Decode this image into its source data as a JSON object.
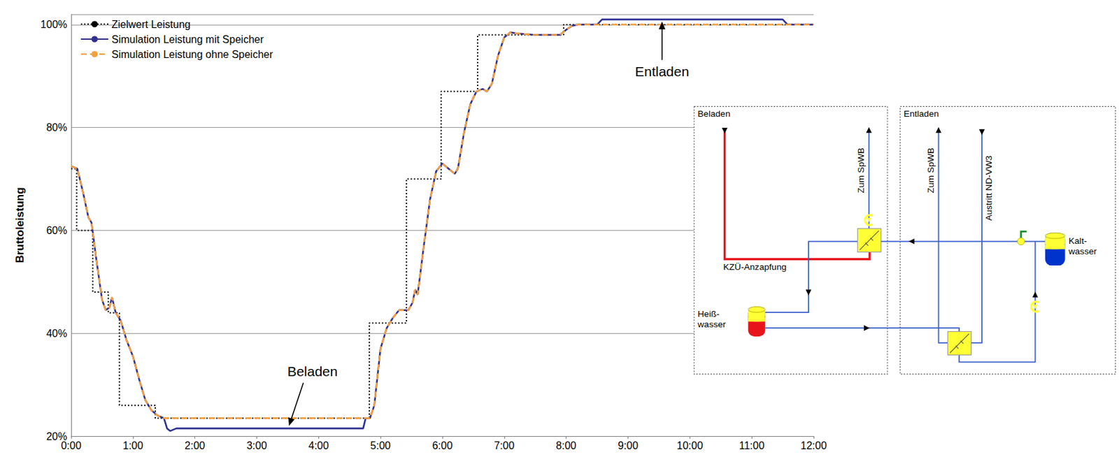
{
  "chart_data": {
    "type": "line",
    "ylabel": "Bruttoleistung",
    "xlim": [
      0,
      12
    ],
    "xticks": [
      {
        "value": 0,
        "label": "0:00"
      },
      {
        "value": 1,
        "label": "1:00"
      },
      {
        "value": 2,
        "label": "2:00"
      },
      {
        "value": 3,
        "label": "3:00"
      },
      {
        "value": 4,
        "label": "4:00"
      },
      {
        "value": 5,
        "label": "5:00"
      },
      {
        "value": 6,
        "label": "6:00"
      },
      {
        "value": 7,
        "label": "7:00"
      },
      {
        "value": 8,
        "label": "8:00"
      },
      {
        "value": 9,
        "label": "9:00"
      },
      {
        "value": 10,
        "label": "10:00"
      },
      {
        "value": 11,
        "label": "11:00"
      },
      {
        "value": 12,
        "label": "12:00"
      }
    ],
    "ylim": [
      20,
      102
    ],
    "yticks": [
      {
        "value": 20,
        "label": "20%"
      },
      {
        "value": 40,
        "label": "40%"
      },
      {
        "value": 60,
        "label": "60%"
      },
      {
        "value": 80,
        "label": "80%"
      },
      {
        "value": 100,
        "label": "100%"
      }
    ],
    "grid": true,
    "legend": "upper left",
    "series": [
      {
        "name": "Zielwert Leistung",
        "type": "step",
        "color": "#000000",
        "line_style": "dotted",
        "x": [
          0,
          0.09,
          0.35,
          0.6,
          0.78,
          1.36,
          4.82,
          5.42,
          5.98,
          6.57,
          7.96,
          12
        ],
        "values": [
          72,
          60,
          48,
          44,
          26,
          23.5,
          42,
          70,
          87,
          98,
          100,
          100
        ]
      },
      {
        "name": "Simulation Leistung mit Speicher",
        "type": "line",
        "color": "#2e3192",
        "line_style": "solid",
        "x": [
          0,
          0.1,
          0.2,
          0.28,
          0.33,
          0.4,
          0.5,
          0.56,
          0.62,
          0.66,
          0.72,
          0.8,
          0.9,
          1.0,
          1.1,
          1.2,
          1.3,
          1.4,
          1.5,
          1.55,
          1.6,
          1.7,
          4.72,
          4.76,
          4.83,
          4.9,
          5.0,
          5.1,
          5.2,
          5.3,
          5.45,
          5.52,
          5.56,
          5.6,
          5.7,
          5.8,
          5.9,
          6.0,
          6.1,
          6.2,
          6.25,
          6.35,
          6.45,
          6.55,
          6.65,
          6.72,
          6.8,
          6.9,
          7.0,
          7.1,
          7.2,
          7.5,
          7.9,
          8.0,
          8.1,
          8.2,
          8.5,
          8.58,
          11.5,
          11.58,
          12
        ],
        "values": [
          72.5,
          72,
          67,
          62.5,
          61.5,
          55,
          46.5,
          44.5,
          45,
          47,
          44,
          42.5,
          38.5,
          35.5,
          31,
          27,
          25,
          24,
          23.5,
          21.5,
          21,
          21.5,
          21.5,
          23.5,
          23.5,
          26,
          37,
          41,
          43,
          44.5,
          44.5,
          46,
          48.5,
          47.5,
          57,
          66,
          71.5,
          73,
          72,
          71,
          72,
          79,
          84.5,
          87,
          87.5,
          87,
          88.5,
          94,
          97.5,
          98.5,
          98.3,
          98,
          98,
          99,
          99.8,
          100,
          100,
          101,
          101,
          100,
          100
        ]
      },
      {
        "name": "Simulation Leistung ohne Speicher",
        "type": "line",
        "color": "#f4a040",
        "line_style": "dashed",
        "x": [
          0,
          0.1,
          0.2,
          0.28,
          0.33,
          0.4,
          0.5,
          0.56,
          0.62,
          0.66,
          0.72,
          0.8,
          0.9,
          1.0,
          1.1,
          1.2,
          1.3,
          1.4,
          1.5,
          4.83,
          4.9,
          5.0,
          5.1,
          5.2,
          5.3,
          5.45,
          5.52,
          5.56,
          5.6,
          5.7,
          5.8,
          5.9,
          6.0,
          6.1,
          6.2,
          6.25,
          6.35,
          6.45,
          6.55,
          6.65,
          6.72,
          6.8,
          6.9,
          7.0,
          7.1,
          7.2,
          7.5,
          7.9,
          8.0,
          8.1,
          8.2,
          12
        ],
        "values": [
          72.5,
          72,
          67,
          62.5,
          61.5,
          55,
          46.5,
          44.5,
          45,
          47,
          44,
          42.5,
          38.5,
          35.5,
          31,
          27,
          25,
          24,
          23.5,
          23.5,
          26,
          37,
          41,
          43,
          44.5,
          44.5,
          46,
          48.5,
          47.5,
          57,
          66,
          71.5,
          73,
          72,
          71,
          72,
          79,
          84.5,
          87,
          87.5,
          87,
          88.5,
          94,
          97.5,
          98.5,
          98.3,
          98,
          98,
          99,
          99.8,
          100,
          100
        ]
      }
    ],
    "annotations": [
      {
        "text": "Entladen",
        "x": 9.55,
        "y": 101
      },
      {
        "text": "Beladen",
        "x": 3.5,
        "y": 21.5
      }
    ]
  },
  "diagram": {
    "charging": {
      "title": "Beladen",
      "outlet": "Zum SpWB",
      "tap": "KZÜ-Anzapfung",
      "tank": [
        "Heiß-",
        "wasser"
      ]
    },
    "discharging": {
      "title": "Entladen",
      "outlet": "Zum SpWB",
      "inlet": "Austritt ND-VW3",
      "tank": [
        "Kalt-",
        "wasser"
      ]
    }
  }
}
